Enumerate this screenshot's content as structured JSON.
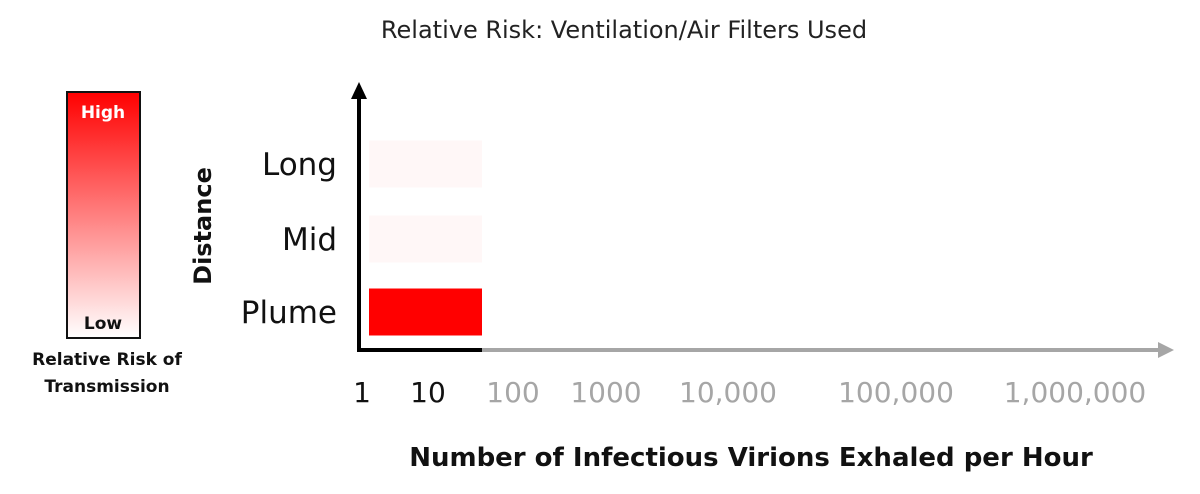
{
  "chart_data": {
    "type": "bar",
    "title": "Relative Risk: Ventilation/Air Filters Used",
    "xlabel": "Number of Infectious Virions Exhaled per Hour",
    "ylabel": "Distance",
    "x_scale": "log",
    "x_ticks": [
      "1",
      "10",
      "100",
      "1000",
      "10,000",
      "100,000",
      "1,000,000"
    ],
    "x_ticks_active": [
      true,
      true,
      false,
      false,
      false,
      false,
      false
    ],
    "categories": [
      "Long",
      "Mid",
      "Plume"
    ],
    "x_range": [
      1,
      100
    ],
    "relative_risk": [
      0.03,
      0.03,
      1.0
    ],
    "colors": {
      "high": "#ff0000",
      "low": "#ffffff",
      "axis_active": "#000000",
      "axis_inactive": "#a6a6a6",
      "tick_inactive": "#a6a6a6"
    },
    "legend": {
      "high_label": "High",
      "low_label": "Low",
      "title_line1": "Relative Risk of",
      "title_line2": "Transmission",
      "placement": "left"
    }
  }
}
